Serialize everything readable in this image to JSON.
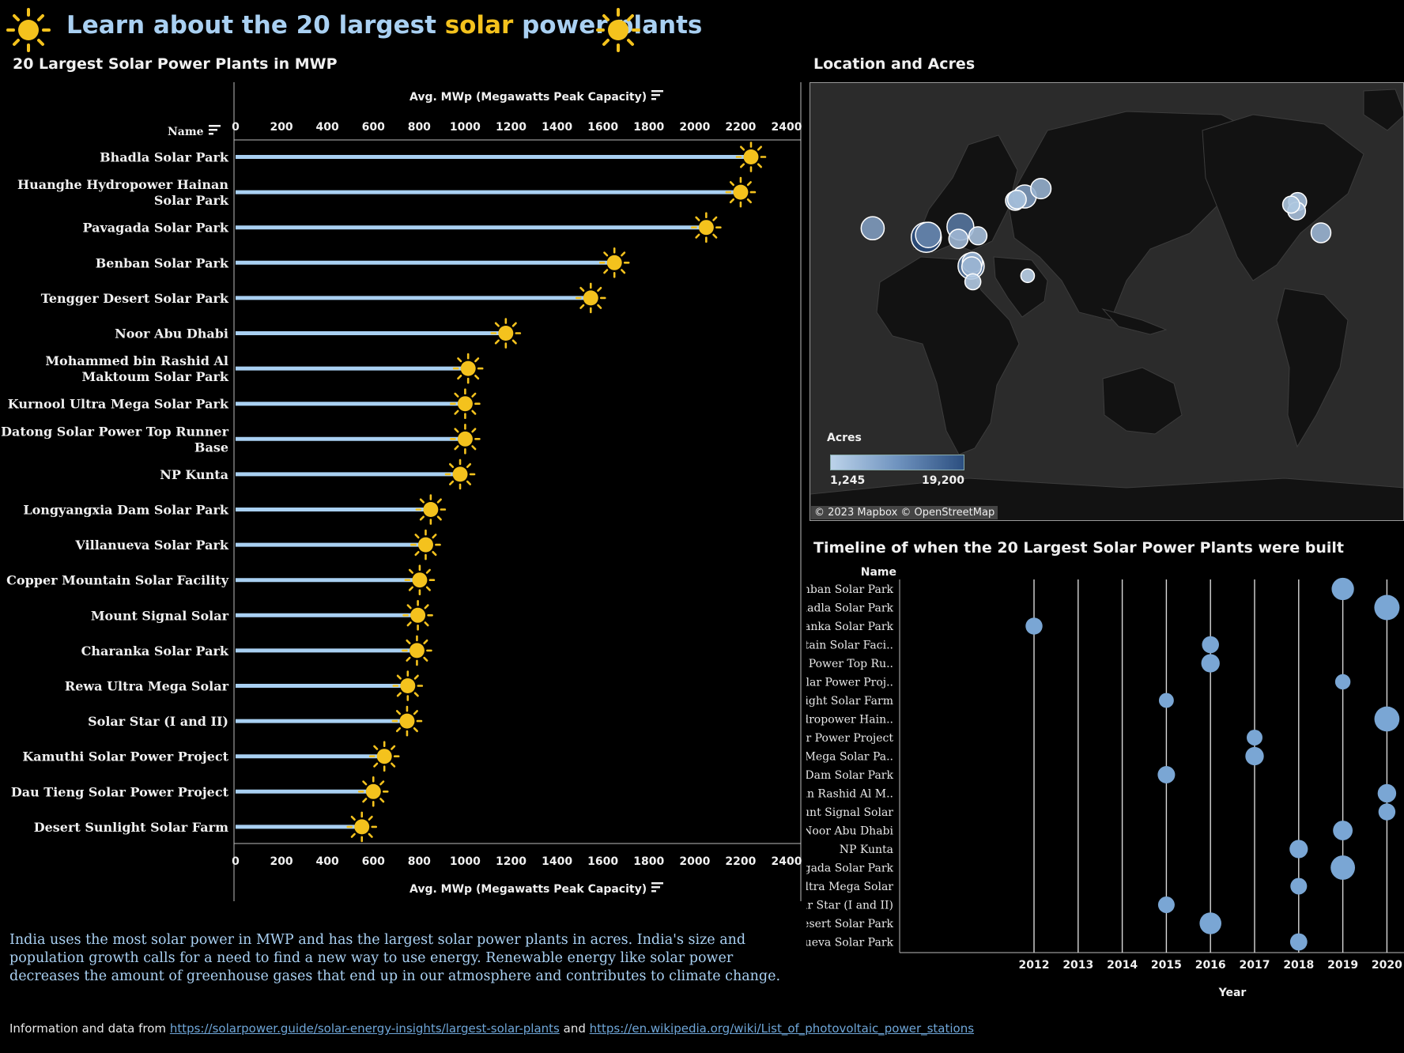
{
  "header": {
    "title_part1": "Learn about the 20 largest ",
    "title_highlight": "solar",
    "title_part2": " power plants",
    "icon_left": "sun-icon",
    "icon_right": "sun-icon"
  },
  "colors": {
    "accent_sun": "#f4c21d",
    "title_blue": "#a9d0f2",
    "bar": "#a9d0f2",
    "bubble": "#7aa6d4"
  },
  "bar_panel": {
    "title": "20 Largest Solar Power Plants in MWP",
    "axis_title": "Avg. MWp (Megawatts Peak Capacity)",
    "name_header": "Name",
    "sort_icon": "sort-icon"
  },
  "map_panel": {
    "title": "Location and Acres",
    "legend_title": "Acres",
    "legend_min": "1,245",
    "legend_max": "19,200",
    "attribution": "© 2023 Mapbox  © OpenStreetMap"
  },
  "timeline_panel": {
    "title": "Timeline of when the 20 Largest Solar Power Plants were built",
    "name_header": "Name",
    "x_title": "Year"
  },
  "narrative": "India uses the most solar power in MWP and has the largest solar power plants in acres. India's size and population growth calls for a need to find a new way to use energy. Renewable energy like solar power decreases the amount of greenhouse gases that end up in our atmosphere and contributes to climate change.",
  "source": {
    "prefix": "Information and data from ",
    "link1": "https://solarpower.guide/solar-energy-insights/largest-solar-plants",
    "middle": " and ",
    "link2": "https://en.wikipedia.org/wiki/List_of_photovoltaic_power_stations"
  },
  "chart_data": [
    {
      "type": "bar",
      "title": "20 Largest Solar Power Plants in MWP",
      "xlabel": "Avg. MWp (Megawatts Peak Capacity)",
      "ylabel": "Name",
      "xlim": [
        0,
        2400
      ],
      "ticks": [
        0,
        200,
        400,
        600,
        800,
        1000,
        1200,
        1400,
        1600,
        1800,
        2000,
        2200,
        2400
      ],
      "categories": [
        [
          "Bhadla Solar Park"
        ],
        [
          "Huanghe Hydropower Hainan",
          "Solar Park"
        ],
        [
          "Pavagada Solar Park"
        ],
        [
          "Benban Solar Park"
        ],
        [
          "Tengger Desert Solar Park"
        ],
        [
          "Noor Abu Dhabi"
        ],
        [
          "Mohammed bin Rashid Al",
          "Maktoum Solar Park"
        ],
        [
          "Kurnool Ultra Mega Solar Park"
        ],
        [
          "Datong Solar Power Top Runner",
          "Base"
        ],
        [
          "NP Kunta"
        ],
        [
          "Longyangxia Dam Solar Park"
        ],
        [
          "Villanueva Solar Park"
        ],
        [
          "Copper Mountain Solar Facility"
        ],
        [
          "Mount Signal Solar"
        ],
        [
          "Charanka Solar Park"
        ],
        [
          "Rewa Ultra Mega Solar"
        ],
        [
          "Solar Star (I and II)"
        ],
        [
          "Kamuthi Solar Power Project"
        ],
        [
          "Dau Tieng Solar Power Project"
        ],
        [
          "Desert Sunlight Solar Farm"
        ]
      ],
      "values": [
        2245,
        2200,
        2050,
        1650,
        1547,
        1177,
        1013,
        1000,
        1000,
        978,
        850,
        828,
        802,
        794,
        790,
        750,
        747,
        648,
        600,
        550
      ]
    },
    {
      "type": "scatter",
      "title": "Location and Acres",
      "legend": {
        "title": "Acres",
        "min": 1245,
        "max": 19200
      },
      "points": [
        {
          "lon": 27,
          "lat": 27,
          "acres": 9000
        },
        {
          "lon": 54.5,
          "lat": 24,
          "acres": 19200
        },
        {
          "lon": 55.5,
          "lat": 24.8,
          "acres": 12000
        },
        {
          "lon": 72,
          "lat": 27.5,
          "acres": 14000
        },
        {
          "lon": 71,
          "lat": 23.5,
          "acres": 5000
        },
        {
          "lon": 81,
          "lat": 24.5,
          "acres": 4000
        },
        {
          "lon": 77.5,
          "lat": 14.5,
          "acres": 13000
        },
        {
          "lon": 78.2,
          "lat": 15.7,
          "acres": 6000
        },
        {
          "lon": 77.8,
          "lat": 14.3,
          "acres": 5500
        },
        {
          "lon": 78.4,
          "lat": 9.3,
          "acres": 2500
        },
        {
          "lon": 106.5,
          "lat": 11.3,
          "acres": 1245
        },
        {
          "lon": 105,
          "lat": 37.5,
          "acres": 9000
        },
        {
          "lon": 100.1,
          "lat": 36.1,
          "acres": 5000
        },
        {
          "lon": 101,
          "lat": 36.5,
          "acres": 4500
        },
        {
          "lon": 113.3,
          "lat": 40.1,
          "acres": 6000
        },
        {
          "lon": -115,
          "lat": 35.8,
          "acres": 4000
        },
        {
          "lon": -118.3,
          "lat": 34.8,
          "acres": 3200
        },
        {
          "lon": -115.5,
          "lat": 32.7,
          "acres": 3800
        },
        {
          "lon": -103,
          "lat": 25.5,
          "acres": 5500
        }
      ]
    },
    {
      "type": "scatter",
      "title": "Timeline of when the 20 Largest Solar Power Plants were built",
      "xlabel": "Year",
      "ylabel": "Name",
      "x_ticks": [
        2012,
        2013,
        2014,
        2015,
        2016,
        2017,
        2018,
        2019,
        2020
      ],
      "categories": [
        "Benban Solar Park",
        "Bhadla Solar Park",
        "Charanka Solar Park",
        "Copper Mountain Solar Faci..",
        "Datong Solar Power Top Ru..",
        "Dau Tieng Solar Power Proj..",
        "Desert Sunlight Solar Farm",
        "Huanghe Hydropower Hain..",
        "Kamuthi Solar Power Project",
        "Kurnool Ultra Mega Solar Pa..",
        "Longyangxia Dam Solar Park",
        "Mohammed bin Rashid Al M..",
        "Mount Signal Solar",
        "Noor Abu Dhabi",
        "NP Kunta",
        "Pavagada Solar Park",
        "Rewa Ultra Mega Solar",
        "Solar Star (I and II)",
        "Tengger Desert Solar Park",
        "Villanueva Solar Park"
      ],
      "years": [
        2019,
        2020,
        2012,
        2016,
        2016,
        2019,
        2015,
        2020,
        2017,
        2017,
        2015,
        2020,
        2020,
        2019,
        2018,
        2019,
        2018,
        2015,
        2016,
        2018
      ],
      "sizes": [
        1650,
        2245,
        790,
        802,
        1000,
        600,
        550,
        2200,
        648,
        1000,
        850,
        1013,
        794,
        1177,
        978,
        2050,
        750,
        747,
        1547,
        828
      ]
    }
  ]
}
